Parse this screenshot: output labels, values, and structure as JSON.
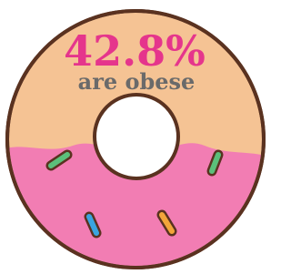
{
  "stat": {
    "value": "42.8%",
    "caption": "are obese"
  }
}
